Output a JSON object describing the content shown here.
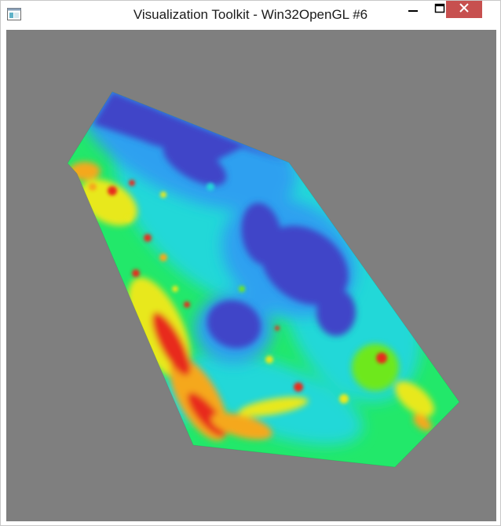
{
  "window": {
    "title": "Visualization Toolkit - Win32OpenGL #6",
    "icon": "vtk-app-icon",
    "controls": {
      "minimize": "minimize-icon",
      "maximize": "maximize-icon",
      "close": "close-icon"
    }
  },
  "render_window": {
    "background_color": "#7f7f7f",
    "colormap": [
      "#3f44c8",
      "#2fa0f0",
      "#24d8d8",
      "#22e86a",
      "#6ee81e",
      "#e8e81e",
      "#f5a81e",
      "#e82a1e"
    ]
  }
}
